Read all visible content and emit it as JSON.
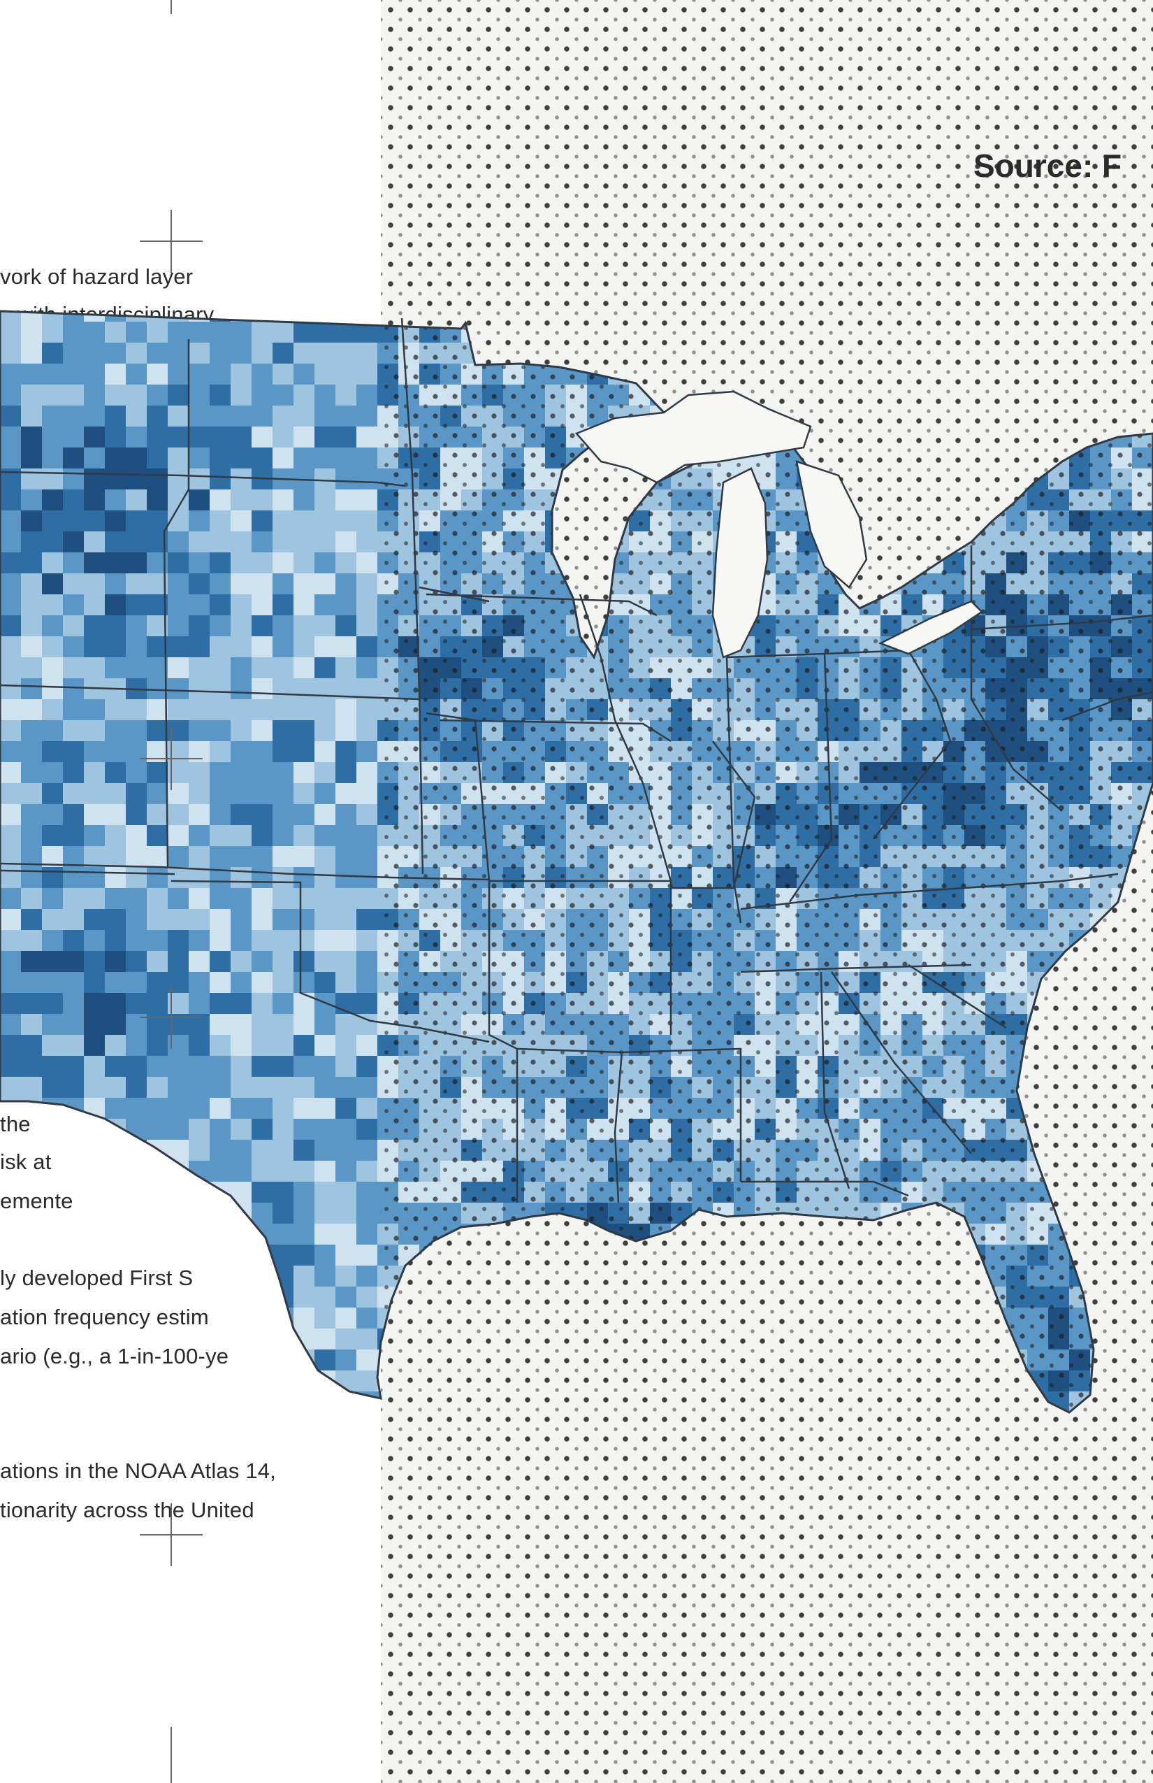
{
  "source_label": "Source: F",
  "text_lines": [
    "vork of hazard layer",
    "s with interdisciplinary",
    "the",
    "isk at",
    "emente",
    "ly developed First S",
    "ation frequency estim",
    "ario (e.g., a 1-in-100-ye",
    "ations in the NOAA Atlas 14,",
    "tionarity across the United"
  ],
  "colors": {
    "light": "#cfe2ef",
    "mid_light": "#9ec4df",
    "mid": "#5b97c6",
    "dark": "#2f6ea5",
    "darkest": "#1e4f7e",
    "border": "#2f3a44"
  }
}
